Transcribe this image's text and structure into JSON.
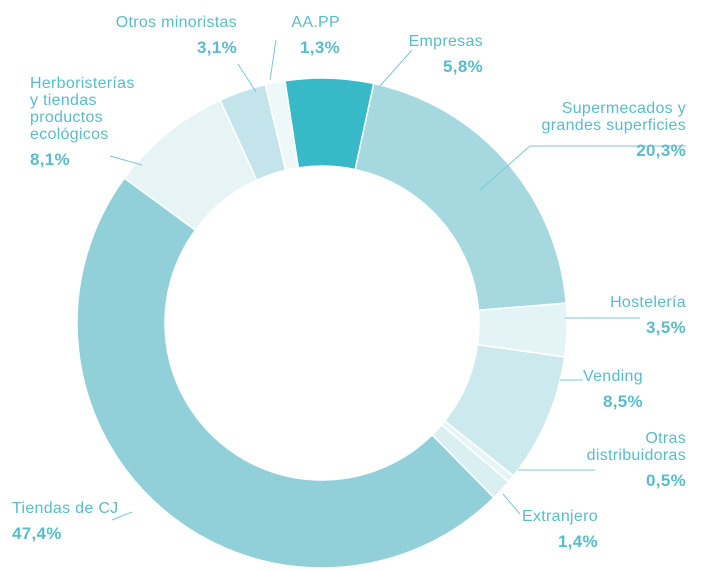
{
  "chart_data": {
    "type": "donut",
    "categories": [
      "Empresas",
      "Supermecados y\ngrandes superficies",
      "Hostelería",
      "Vending",
      "Otras\ndistribuidoras",
      "Extranjero",
      "Tiendas de CJ",
      "Herboristerías\ny tiendas\nproductos\necológicos",
      "Otros minoristas",
      "AA.PP"
    ],
    "values": [
      5.8,
      20.3,
      3.5,
      8.5,
      0.5,
      1.4,
      47.4,
      8.1,
      3.1,
      1.3
    ],
    "value_labels": [
      "5,8%",
      "20,3%",
      "3,5%",
      "8,5%",
      "0,5%",
      "1,4%",
      "47,4%",
      "8,1%",
      "3,1%",
      "1,3%"
    ],
    "colors": [
      "#38b9c8",
      "#a6d9df",
      "#e4f3f5",
      "#cce9ed",
      "#e6f5f7",
      "#d9eff2",
      "#92d0d9",
      "#e6f4f6",
      "#c2e4ea",
      "#eef8f9"
    ]
  }
}
